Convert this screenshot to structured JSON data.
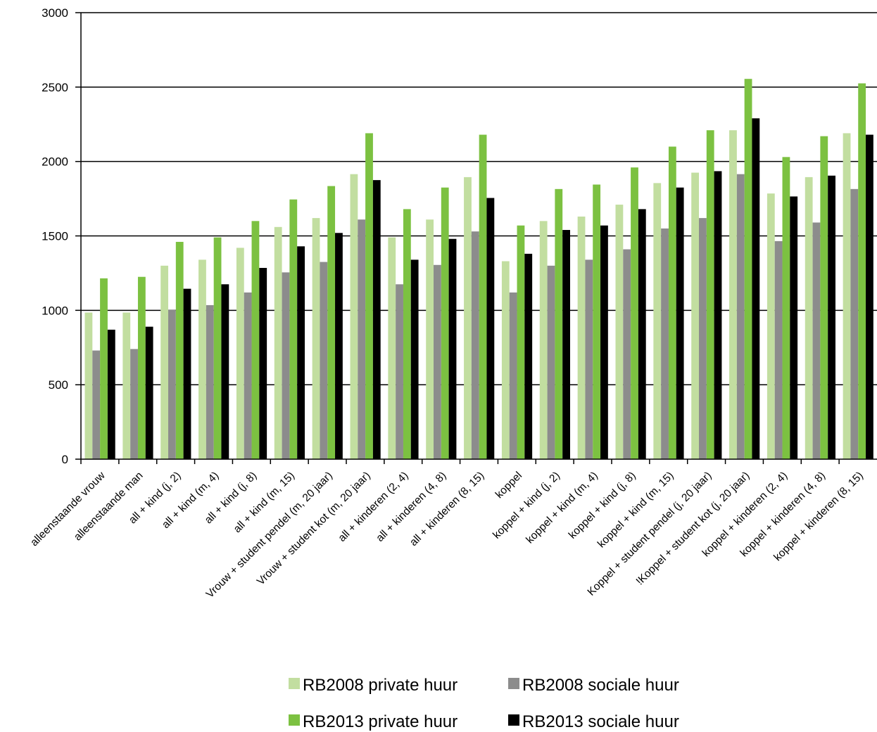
{
  "chart_data": {
    "type": "bar",
    "categories": [
      "alleenstaande vrouw",
      "alleenstaande man",
      "all + kind (j, 2)",
      "all + kind (m, 4)",
      "all + kind (j, 8)",
      "all + kind (m, 15)",
      "Vrouw + student pendel (m, 20 jaar)",
      "Vrouw + student kot (m, 20 jaar)",
      "all + kinderen (2, 4)",
      "all + kinderen (4, 8)",
      "all + kinderen (8, 15)",
      "koppel",
      "koppel + kind (j, 2)",
      "koppel + kind (m, 4)",
      "koppel + kind (j, 8)",
      "koppel + kind (m, 15)",
      "Koppel + student pendel (j, 20 jaar)",
      "!Koppel + student kot (j, 20 jaar)",
      "koppel + kinderen (2, 4)",
      "koppel + kinderen (4, 8)",
      "koppel + kinderen (8, 15)"
    ],
    "series": [
      {
        "name": "RB2008 private huur",
        "color": "#c2dea0",
        "values": [
          985,
          985,
          1300,
          1340,
          1420,
          1560,
          1620,
          1915,
          1490,
          1610,
          1895,
          1330,
          1600,
          1630,
          1710,
          1855,
          1925,
          2210,
          1785,
          1895,
          2190
        ]
      },
      {
        "name": "RB2008 sociale huur",
        "color": "#8c8c8c",
        "values": [
          730,
          740,
          1005,
          1035,
          1120,
          1255,
          1325,
          1610,
          1175,
          1305,
          1530,
          1120,
          1300,
          1340,
          1410,
          1550,
          1620,
          1915,
          1465,
          1590,
          1815
        ]
      },
      {
        "name": "RB2013 private huur",
        "color": "#7cc141",
        "values": [
          1215,
          1225,
          1460,
          1490,
          1600,
          1745,
          1835,
          2190,
          1680,
          1825,
          2180,
          1570,
          1815,
          1845,
          1960,
          2100,
          2210,
          2555,
          2030,
          2170,
          2525
        ]
      },
      {
        "name": "RB2013 sociale huur",
        "color": "#000000",
        "values": [
          870,
          890,
          1145,
          1175,
          1285,
          1430,
          1520,
          1875,
          1340,
          1480,
          1755,
          1380,
          1540,
          1570,
          1680,
          1825,
          1935,
          2290,
          1765,
          1905,
          2180
        ]
      }
    ],
    "yticks": [
      "0",
      "500",
      "1000",
      "1500",
      "2000",
      "2500",
      "3000"
    ],
    "ylim": [
      0,
      3000
    ],
    "grid": true,
    "legend": "bottom-center"
  }
}
